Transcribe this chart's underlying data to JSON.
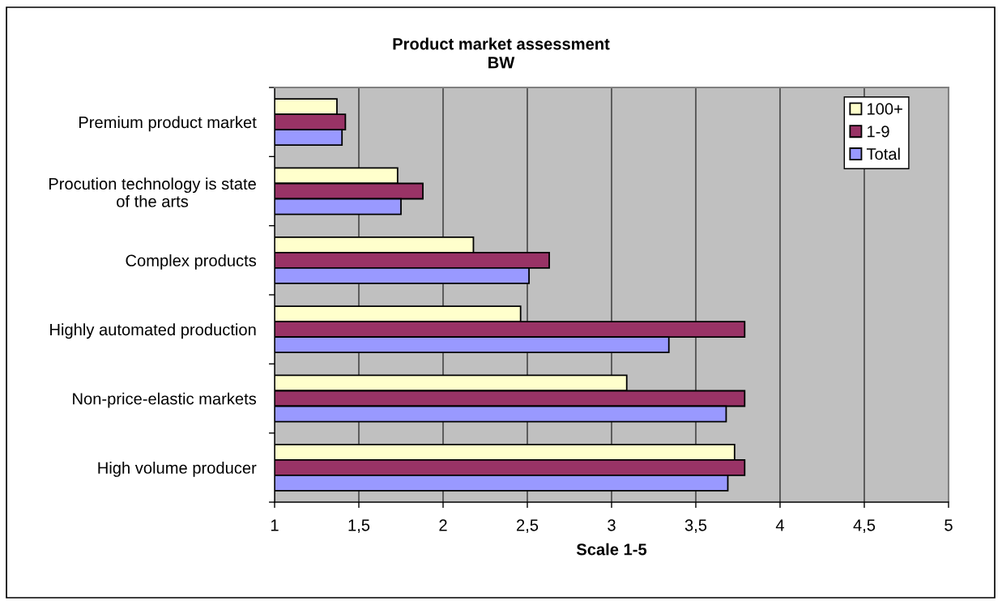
{
  "chart_data": {
    "type": "bar",
    "orientation": "horizontal",
    "title": "Product market assessment",
    "subtitle": "BW",
    "xlabel": "Scale 1-5",
    "categories": [
      "Premium product market",
      "Procution technology is state\nof the arts",
      "Complex products",
      "Highly automated production",
      "Non-price-elastic markets",
      "High volume producer"
    ],
    "series": [
      {
        "name": "100+",
        "color": "#ffffcc",
        "values": [
          1.37,
          1.73,
          2.18,
          2.46,
          3.09,
          3.73
        ]
      },
      {
        "name": "1-9",
        "color": "#993366",
        "values": [
          1.42,
          1.88,
          2.63,
          3.79,
          3.79,
          3.79
        ]
      },
      {
        "name": "Total",
        "color": "#9999ff",
        "values": [
          1.4,
          1.75,
          2.51,
          3.34,
          3.68,
          3.69
        ]
      }
    ],
    "xlim": [
      1,
      5
    ],
    "xticks": [
      1,
      {
        "value": 1.5,
        "label": "1,5"
      },
      2,
      {
        "value": 2.5,
        "label": "2,5"
      },
      3,
      {
        "value": 3.5,
        "label": "3,5"
      },
      4,
      {
        "value": 4.5,
        "label": "4,5"
      },
      5
    ],
    "grid": "x",
    "legend": "top right"
  }
}
